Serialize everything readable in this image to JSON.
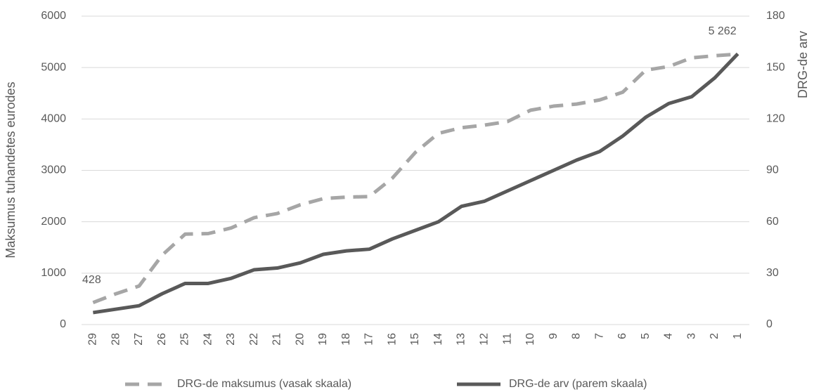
{
  "chart_data": {
    "type": "line",
    "categories": [
      "29",
      "28",
      "27",
      "26",
      "25",
      "24",
      "23",
      "22",
      "21",
      "20",
      "19",
      "18",
      "17",
      "16",
      "15",
      "14",
      "13",
      "12",
      "11",
      "10",
      "9",
      "8",
      "7",
      "6",
      "5",
      "4",
      "3",
      "2",
      "1"
    ],
    "series": [
      {
        "name": "DRG-de maksumus (vasak skaala)",
        "color": "#a6a6a6",
        "dash": true,
        "values": [
          428,
          600,
          750,
          1350,
          1760,
          1770,
          1880,
          2080,
          2160,
          2330,
          2450,
          2480,
          2490,
          2850,
          3350,
          3720,
          3830,
          3880,
          3950,
          4170,
          4250,
          4290,
          4370,
          4520,
          4950,
          5020,
          5190,
          5230,
          5262
        ],
        "value_labels": [
          "428",
          null,
          null,
          null,
          null,
          null,
          null,
          null,
          null,
          null,
          null,
          null,
          null,
          null,
          null,
          null,
          null,
          null,
          null,
          null,
          null,
          null,
          null,
          null,
          null,
          null,
          null,
          null,
          "5 262"
        ]
      },
      {
        "name": "DRG-de arv (parem skaala)",
        "color": "#595959",
        "axis": "y2",
        "values": [
          7,
          9,
          11,
          18,
          24,
          24,
          27,
          32,
          33,
          36,
          41,
          43,
          44,
          50,
          55,
          60,
          69,
          72,
          78,
          84,
          90,
          96,
          101,
          110,
          121,
          129,
          133,
          144,
          158
        ]
      }
    ],
    "ylabel": "Maksumus tuhandetes eurodes",
    "y2label": "DRG-de arv",
    "ylim": [
      0,
      6000
    ],
    "yticks": [
      0,
      1000,
      2000,
      3000,
      4000,
      5000,
      6000
    ],
    "y2lim": [
      0,
      180
    ],
    "y2ticks": [
      0,
      30,
      60,
      90,
      120,
      150,
      180
    ],
    "grid": true,
    "legend": "bottom"
  }
}
